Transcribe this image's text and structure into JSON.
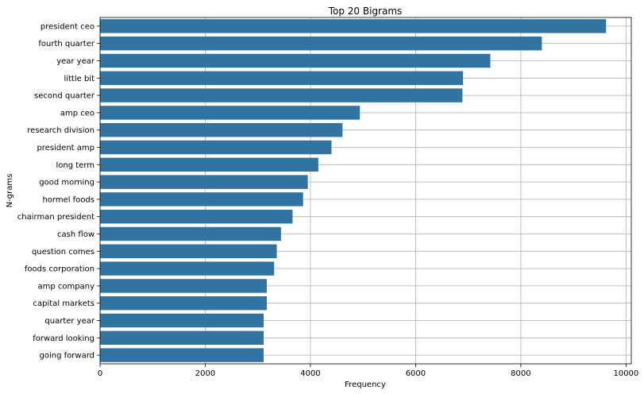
{
  "chart_data": {
    "type": "bar",
    "orientation": "horizontal",
    "title": "Top 20 Bigrams",
    "xlabel": "Frequency",
    "ylabel": "N-grams",
    "xlim": [
      0,
      10100
    ],
    "xticks": [
      0,
      2000,
      4000,
      6000,
      8000,
      10000
    ],
    "grid": true,
    "bar_color": "#3274a1",
    "categories": [
      "president ceo",
      "fourth quarter",
      "year year",
      "little bit",
      "second quarter",
      "amp ceo",
      "research division",
      "president amp",
      "long term",
      "good morning",
      "hormel foods",
      "chairman president",
      "cash flow",
      "question comes",
      "foods corporation",
      "amp company",
      "capital markets",
      "quarter year",
      "forward looking",
      "going forward"
    ],
    "values": [
      9620,
      8400,
      7420,
      6900,
      6890,
      4940,
      4610,
      4400,
      4150,
      3950,
      3860,
      3660,
      3440,
      3360,
      3310,
      3170,
      3170,
      3110,
      3110,
      3110
    ]
  }
}
